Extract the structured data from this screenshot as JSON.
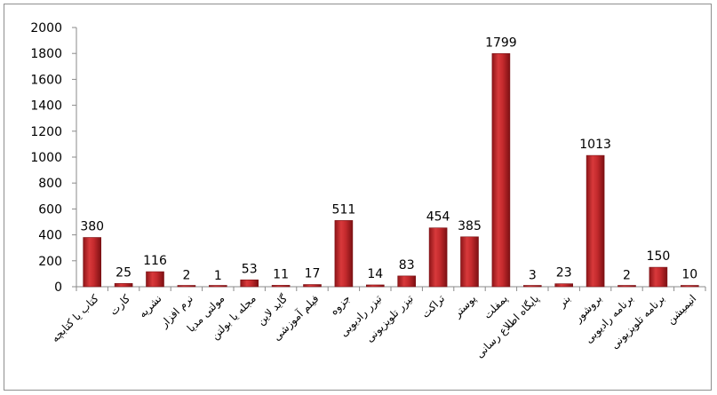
{
  "chart_data": {
    "type": "bar",
    "categories": [
      "کتاب یا کتابچه",
      "کارت",
      "نشریه",
      "نرم افزار",
      "مولتی مدیا",
      "مجله یا بولتن",
      "گاید لاین",
      "فیلم آموزشی",
      "جزوه",
      "تیزر رادیویی",
      "تیزر تلویزیونی",
      "تراکت",
      "پوستر",
      "پمفلت",
      "پایگاه اطلاع رسانی",
      "بنر",
      "بروشور",
      "برنامه رادیویی",
      "برنامه تلویزیونی",
      "انیمیشن"
    ],
    "values": [
      380,
      25,
      116,
      2,
      1,
      53,
      11,
      17,
      511,
      14,
      83,
      454,
      385,
      1799,
      3,
      23,
      1013,
      2,
      150,
      10
    ],
    "yticks": [
      "0",
      "200",
      "400",
      "600",
      "800",
      "1000",
      "1200",
      "1400",
      "1600",
      "1800",
      "2000"
    ],
    "ylim": [
      0,
      2000
    ],
    "grid": false,
    "legend": "none",
    "bar_color": "#c0282a"
  }
}
